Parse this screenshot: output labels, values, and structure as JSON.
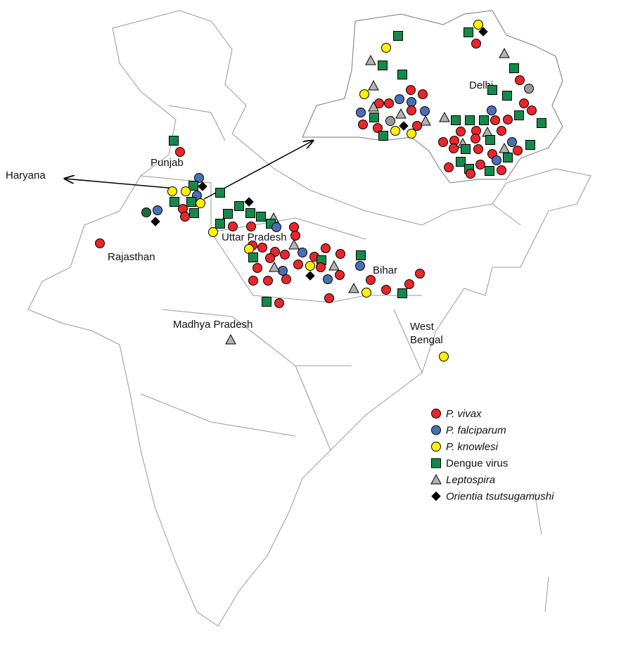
{
  "regions": {
    "haryana": "Haryana",
    "punjab": "Punjab",
    "rajasthan": "Rajasthan",
    "uttar_pradesh": "Uttar Pradesh",
    "madhya_pradesh": "Madhya Pradesh",
    "bihar": "Bihar",
    "west_bengal": "West Bengal",
    "delhi": "Delhi"
  },
  "legend": [
    {
      "label": "P. vivax",
      "italic": true,
      "color": "#e8262b",
      "shape": "circle"
    },
    {
      "label": "P. falciparum",
      "italic": true,
      "color": "#4a6fb5",
      "shape": "circle"
    },
    {
      "label": "P. knowlesi",
      "italic": true,
      "color": "#fff200",
      "shape": "circle"
    },
    {
      "label": "Dengue virus",
      "italic": false,
      "color": "#14894a",
      "shape": "square"
    },
    {
      "label": "Leptospira",
      "italic": true,
      "color": "#b3b3b3",
      "shape": "triangle"
    },
    {
      "label": "Orientia tsutsugamushi",
      "italic": true,
      "color": "#000000",
      "shape": "diamond"
    }
  ]
}
